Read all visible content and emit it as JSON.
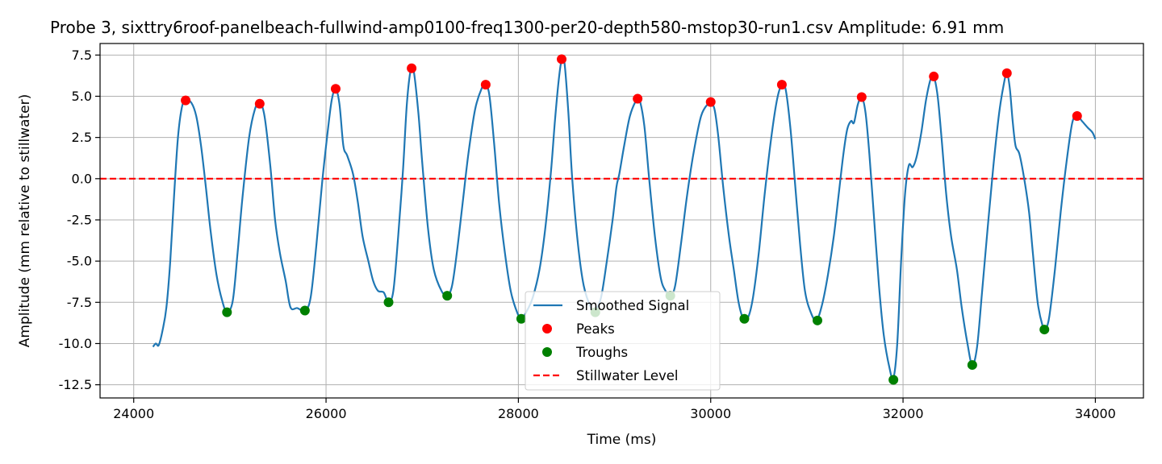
{
  "chart_data": {
    "type": "line",
    "title": "Probe 3, sixttry6roof-panelbeach-fullwind-amp0100-freq1300-per20-depth580-mstop30-run1.csv Amplitude: 6.91 mm",
    "xlabel": "Time (ms)",
    "ylabel": "Amplitude (mm relative to stillwater)",
    "xlim": [
      23650,
      34500
    ],
    "ylim": [
      -13.3,
      8.2
    ],
    "xticks": [
      24000,
      26000,
      28000,
      30000,
      32000,
      34000
    ],
    "yticks": [
      -12.5,
      -10.0,
      -7.5,
      -5.0,
      -2.5,
      0.0,
      2.5,
      5.0,
      7.5
    ],
    "grid": true,
    "legend_position": "lower center",
    "colors": {
      "signal": "#1f77b4",
      "peaks": "#ff0000",
      "troughs": "#008000",
      "stillwater": "#ff0000"
    },
    "stillwater_level": 0.0,
    "signal_knots": [
      [
        24200,
        -10.2
      ],
      [
        24230,
        -10.0
      ],
      [
        24260,
        -10.1
      ],
      [
        24300,
        -9.2
      ],
      [
        24340,
        -7.8
      ],
      [
        24380,
        -5.0
      ],
      [
        24420,
        -1.0
      ],
      [
        24460,
        2.5
      ],
      [
        24500,
        4.3
      ],
      [
        24540,
        4.8
      ],
      [
        24600,
        4.6
      ],
      [
        24650,
        3.8
      ],
      [
        24700,
        2.0
      ],
      [
        24750,
        -0.5
      ],
      [
        24800,
        -3.2
      ],
      [
        24860,
        -5.8
      ],
      [
        24920,
        -7.4
      ],
      [
        24970,
        -8.1
      ],
      [
        25030,
        -7.4
      ],
      [
        25080,
        -4.5
      ],
      [
        25130,
        -1.2
      ],
      [
        25200,
        2.5
      ],
      [
        25260,
        4.2
      ],
      [
        25310,
        4.6
      ],
      [
        25360,
        3.8
      ],
      [
        25420,
        0.8
      ],
      [
        25470,
        -2.5
      ],
      [
        25520,
        -4.5
      ],
      [
        25580,
        -6.2
      ],
      [
        25630,
        -7.8
      ],
      [
        25700,
        -7.85
      ],
      [
        25780,
        -8.0
      ],
      [
        25840,
        -7.2
      ],
      [
        25900,
        -4.0
      ],
      [
        25960,
        -0.2
      ],
      [
        26020,
        3.0
      ],
      [
        26060,
        4.8
      ],
      [
        26100,
        5.45
      ],
      [
        26140,
        4.5
      ],
      [
        26180,
        2.0
      ],
      [
        26220,
        1.4
      ],
      [
        26280,
        0.3
      ],
      [
        26330,
        -1.4
      ],
      [
        26380,
        -3.5
      ],
      [
        26440,
        -5.0
      ],
      [
        26490,
        -6.2
      ],
      [
        26540,
        -6.8
      ],
      [
        26600,
        -6.9
      ],
      [
        26650,
        -7.5
      ],
      [
        26700,
        -6.8
      ],
      [
        26750,
        -3.5
      ],
      [
        26800,
        0.5
      ],
      [
        26840,
        4.5
      ],
      [
        26880,
        6.6
      ],
      [
        26910,
        6.6
      ],
      [
        26960,
        4.0
      ],
      [
        27000,
        1.0
      ],
      [
        27060,
        -3.0
      ],
      [
        27120,
        -5.5
      ],
      [
        27200,
        -6.8
      ],
      [
        27260,
        -7.1
      ],
      [
        27310,
        -6.5
      ],
      [
        27360,
        -4.5
      ],
      [
        27420,
        -1.5
      ],
      [
        27480,
        1.5
      ],
      [
        27550,
        4.2
      ],
      [
        27620,
        5.5
      ],
      [
        27660,
        5.7
      ],
      [
        27700,
        5.0
      ],
      [
        27750,
        2.0
      ],
      [
        27800,
        -1.5
      ],
      [
        27860,
        -4.5
      ],
      [
        27920,
        -6.8
      ],
      [
        27980,
        -8.0
      ],
      [
        28030,
        -8.5
      ],
      [
        28090,
        -8.0
      ],
      [
        28150,
        -7.2
      ],
      [
        28220,
        -5.5
      ],
      [
        28280,
        -3.0
      ],
      [
        28340,
        0.5
      ],
      [
        28380,
        3.5
      ],
      [
        28420,
        6.0
      ],
      [
        28450,
        7.2
      ],
      [
        28480,
        7.0
      ],
      [
        28520,
        4.0
      ],
      [
        28560,
        0.0
      ],
      [
        28620,
        -4.0
      ],
      [
        28680,
        -6.5
      ],
      [
        28760,
        -7.9
      ],
      [
        28800,
        -8.0
      ],
      [
        28860,
        -7.2
      ],
      [
        28920,
        -5.0
      ],
      [
        28980,
        -2.5
      ],
      [
        29020,
        -0.5
      ],
      [
        29050,
        0.3
      ],
      [
        29100,
        2.0
      ],
      [
        29160,
        3.8
      ],
      [
        29230,
        4.8
      ],
      [
        29260,
        4.8
      ],
      [
        29310,
        3.2
      ],
      [
        29360,
        0.0
      ],
      [
        29420,
        -3.5
      ],
      [
        29480,
        -6.0
      ],
      [
        29530,
        -6.8
      ],
      [
        29580,
        -7.1
      ],
      [
        29630,
        -6.5
      ],
      [
        29690,
        -4.0
      ],
      [
        29750,
        -1.2
      ],
      [
        29820,
        1.5
      ],
      [
        29900,
        3.8
      ],
      [
        29980,
        4.6
      ],
      [
        30000,
        4.65
      ],
      [
        30040,
        4.2
      ],
      [
        30080,
        2.5
      ],
      [
        30130,
        -0.5
      ],
      [
        30190,
        -3.5
      ],
      [
        30240,
        -5.5
      ],
      [
        30290,
        -7.5
      ],
      [
        30340,
        -8.5
      ],
      [
        30390,
        -8.4
      ],
      [
        30440,
        -7.2
      ],
      [
        30500,
        -4.5
      ],
      [
        30560,
        -1.0
      ],
      [
        30630,
        2.5
      ],
      [
        30690,
        4.8
      ],
      [
        30740,
        5.7
      ],
      [
        30780,
        5.4
      ],
      [
        30830,
        3.0
      ],
      [
        30880,
        -0.5
      ],
      [
        30930,
        -4.0
      ],
      [
        30980,
        -6.8
      ],
      [
        31040,
        -8.1
      ],
      [
        31100,
        -8.6
      ],
      [
        31160,
        -7.6
      ],
      [
        31220,
        -5.8
      ],
      [
        31280,
        -3.5
      ],
      [
        31330,
        -1.0
      ],
      [
        31380,
        1.5
      ],
      [
        31420,
        3.0
      ],
      [
        31460,
        3.5
      ],
      [
        31490,
        3.4
      ],
      [
        31530,
        4.5
      ],
      [
        31570,
        4.95
      ],
      [
        31610,
        4.0
      ],
      [
        31650,
        1.5
      ],
      [
        31700,
        -2.5
      ],
      [
        31750,
        -6.5
      ],
      [
        31800,
        -9.5
      ],
      [
        31860,
        -11.5
      ],
      [
        31900,
        -12.1
      ],
      [
        31940,
        -10.0
      ],
      [
        31980,
        -5.0
      ],
      [
        32020,
        -1.0
      ],
      [
        32060,
        0.8
      ],
      [
        32100,
        0.7
      ],
      [
        32140,
        1.3
      ],
      [
        32190,
        2.8
      ],
      [
        32240,
        4.8
      ],
      [
        32290,
        6.1
      ],
      [
        32320,
        6.2
      ],
      [
        32360,
        5.0
      ],
      [
        32400,
        2.5
      ],
      [
        32450,
        -1.0
      ],
      [
        32500,
        -3.5
      ],
      [
        32560,
        -5.5
      ],
      [
        32610,
        -7.8
      ],
      [
        32670,
        -10.0
      ],
      [
        32720,
        -11.3
      ],
      [
        32770,
        -10.2
      ],
      [
        32820,
        -7.0
      ],
      [
        32880,
        -3.0
      ],
      [
        32940,
        0.8
      ],
      [
        33000,
        4.0
      ],
      [
        33050,
        5.8
      ],
      [
        33080,
        6.4
      ],
      [
        33110,
        5.5
      ],
      [
        33140,
        3.5
      ],
      [
        33170,
        2.0
      ],
      [
        33210,
        1.5
      ],
      [
        33260,
        0.0
      ],
      [
        33310,
        -2.0
      ],
      [
        33350,
        -4.5
      ],
      [
        33400,
        -7.5
      ],
      [
        33450,
        -8.9
      ],
      [
        33480,
        -9.1
      ],
      [
        33520,
        -8.4
      ],
      [
        33580,
        -5.5
      ],
      [
        33640,
        -2.0
      ],
      [
        33700,
        1.0
      ],
      [
        33760,
        3.4
      ],
      [
        33810,
        3.8
      ],
      [
        33860,
        3.5
      ],
      [
        33920,
        3.1
      ],
      [
        33970,
        2.8
      ],
      [
        34000,
        2.4
      ]
    ],
    "peaks": [
      [
        24540,
        4.75
      ],
      [
        25310,
        4.55
      ],
      [
        26100,
        5.45
      ],
      [
        26890,
        6.7
      ],
      [
        27660,
        5.7
      ],
      [
        28450,
        7.25
      ],
      [
        29240,
        4.85
      ],
      [
        30000,
        4.65
      ],
      [
        30740,
        5.7
      ],
      [
        31570,
        4.95
      ],
      [
        32320,
        6.2
      ],
      [
        33080,
        6.4
      ],
      [
        33810,
        3.8
      ]
    ],
    "troughs": [
      [
        24970,
        -8.1
      ],
      [
        25780,
        -8.0
      ],
      [
        26650,
        -7.5
      ],
      [
        27260,
        -7.1
      ],
      [
        28030,
        -8.5
      ],
      [
        28800,
        -8.1
      ],
      [
        29580,
        -7.1
      ],
      [
        30350,
        -8.5
      ],
      [
        31110,
        -8.6
      ],
      [
        31900,
        -12.2
      ],
      [
        32720,
        -11.3
      ],
      [
        33470,
        -9.15
      ]
    ],
    "legend": [
      "Smoothed Signal",
      "Peaks",
      "Troughs",
      "Stillwater Level"
    ]
  }
}
